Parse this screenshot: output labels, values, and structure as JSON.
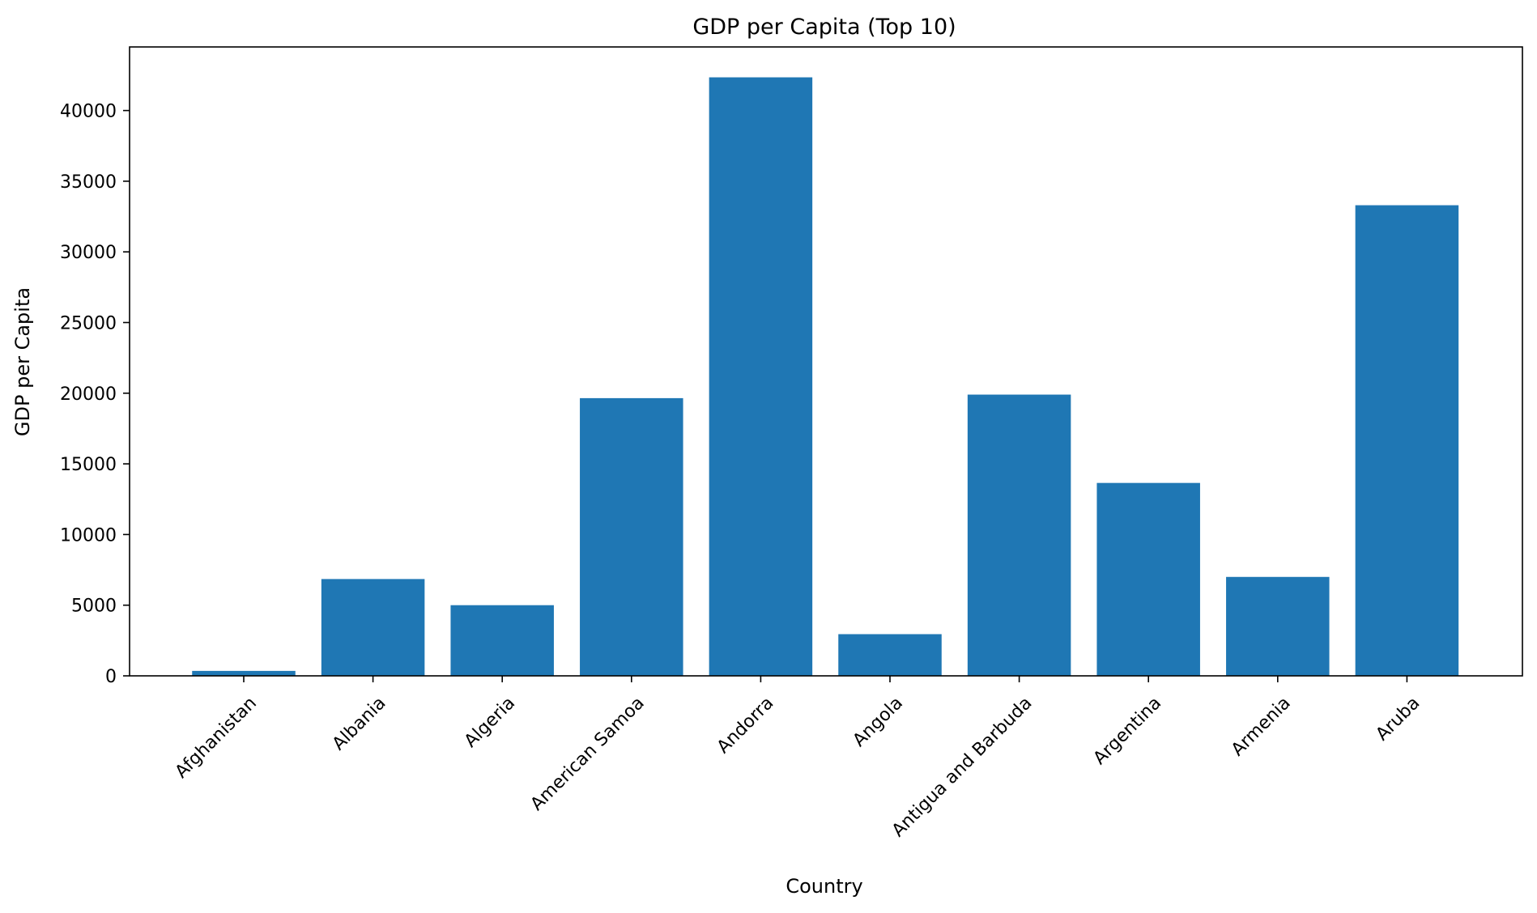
{
  "chart_data": {
    "type": "bar",
    "title": "GDP per Capita (Top 10)",
    "xlabel": "Country",
    "ylabel": "GDP per Capita",
    "categories": [
      "Afghanistan",
      "Albania",
      "Algeria",
      "American Samoa",
      "Andorra",
      "Angola",
      "Antigua and Barbuda",
      "Argentina",
      "Armenia",
      "Aruba"
    ],
    "values": [
      350,
      6850,
      5000,
      19650,
      42350,
      2950,
      19900,
      13650,
      7000,
      33300
    ],
    "ylim": [
      0,
      44500
    ],
    "yticks": [
      0,
      5000,
      10000,
      15000,
      20000,
      25000,
      30000,
      35000,
      40000
    ],
    "bar_color": "#1f77b4",
    "grid": false,
    "legend": false
  }
}
